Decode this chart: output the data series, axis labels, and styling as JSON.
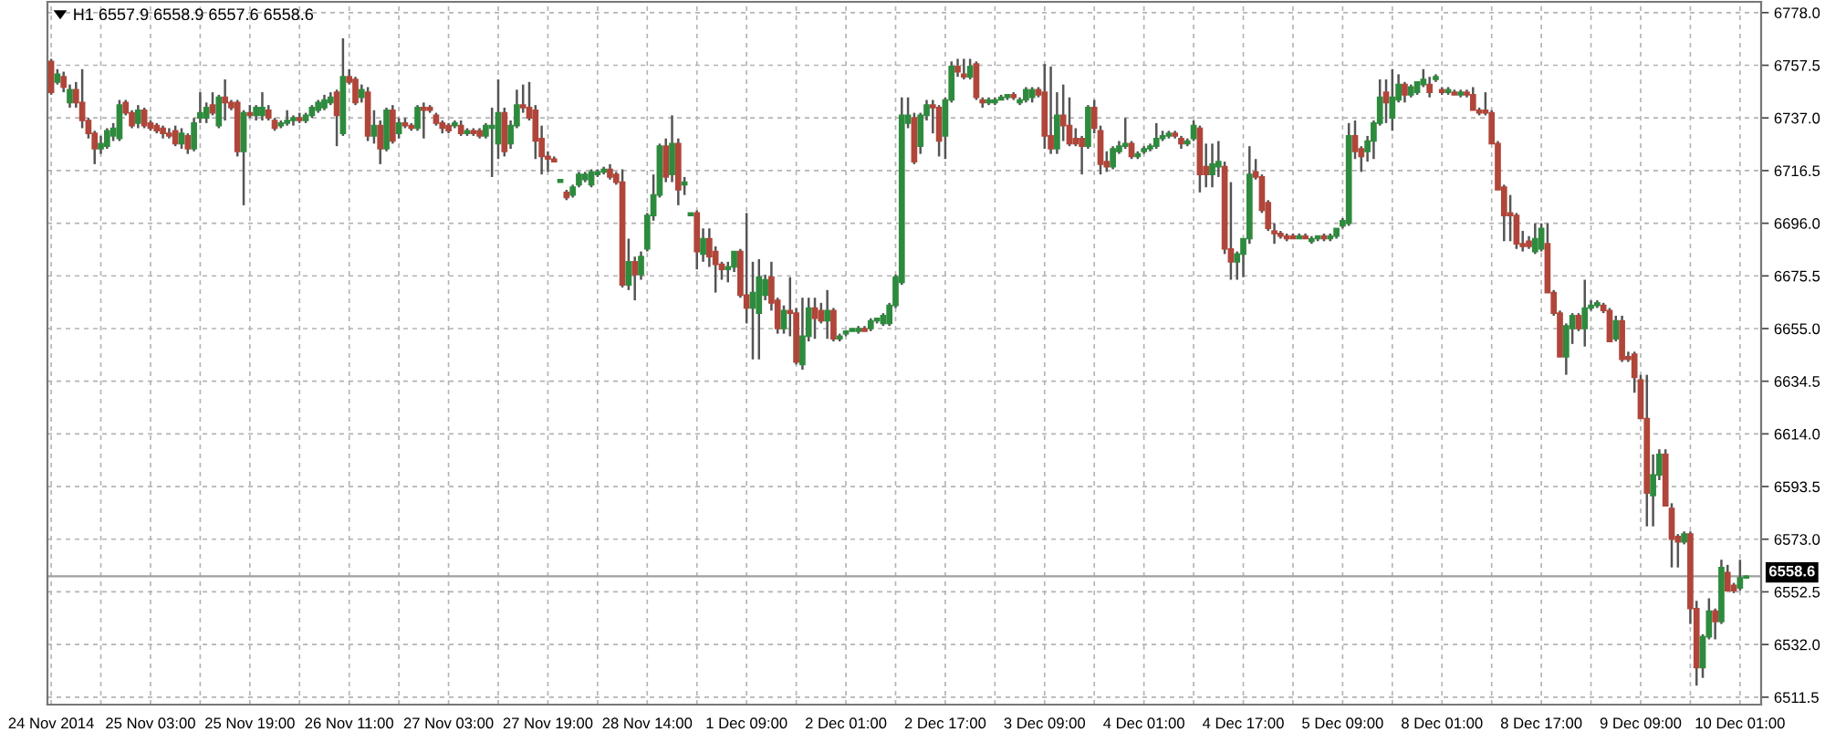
{
  "chart_data": {
    "type": "candlestick",
    "title": "H1 6557.9 6558.9 6557.6 6558.6",
    "categories": [
      "24 Nov 2014",
      null,
      null,
      null,
      null,
      null,
      null,
      null,
      null,
      null,
      null,
      null,
      null,
      null,
      null,
      null,
      "25 Nov 03:00",
      null,
      null,
      null,
      null,
      null,
      null,
      null,
      null,
      null,
      null,
      null,
      null,
      null,
      null,
      null,
      "25 Nov 19:00",
      null,
      null,
      null,
      null,
      null,
      null,
      null,
      null,
      null,
      null,
      null,
      null,
      null,
      null,
      null,
      "26 Nov 11:00",
      null,
      null,
      null,
      null,
      null,
      null,
      null,
      null,
      null,
      null,
      null,
      null,
      null,
      null,
      null,
      "27 Nov 03:00",
      null,
      null,
      null,
      null,
      null,
      null,
      null,
      null,
      null,
      null,
      null,
      null,
      null,
      null,
      null,
      "27 Nov 19:00",
      null,
      null,
      null,
      null,
      null,
      null,
      null,
      null,
      null,
      null,
      null,
      null,
      null,
      null,
      null,
      "28 Nov 14:00",
      null,
      null,
      null,
      null,
      null,
      null,
      null,
      null,
      null,
      null,
      null,
      null,
      null,
      null,
      null,
      "1 Dec 09:00",
      null,
      null,
      null,
      null,
      null,
      null,
      null,
      null,
      null,
      null,
      null,
      null,
      null,
      null,
      null,
      "2 Dec 01:00",
      null,
      null,
      null,
      null,
      null,
      null,
      null,
      null,
      null,
      null,
      null,
      null,
      null,
      null,
      null,
      "2 Dec 17:00",
      null,
      null,
      null,
      null,
      null,
      null,
      null,
      null,
      null,
      null,
      null,
      null,
      null,
      null,
      null,
      "3 Dec 09:00",
      null,
      null,
      null,
      null,
      null,
      null,
      null,
      null,
      null,
      null,
      null,
      null,
      null,
      null,
      null,
      "4 Dec 01:00",
      null,
      null,
      null,
      null,
      null,
      null,
      null,
      null,
      null,
      null,
      null,
      null,
      null,
      null,
      null,
      "4 Dec 17:00",
      null,
      null,
      null,
      null,
      null,
      null,
      null,
      null,
      null,
      null,
      null,
      null,
      null,
      null,
      null,
      "5 Dec 09:00",
      null,
      null,
      null,
      null,
      null,
      null,
      null,
      null,
      null,
      null,
      null,
      null,
      null,
      null,
      null,
      "8 Dec 01:00",
      null,
      null,
      null,
      null,
      null,
      null,
      null,
      null,
      null,
      null,
      null,
      null,
      null,
      null,
      null,
      "8 Dec 17:00",
      null,
      null,
      null,
      null,
      null,
      null,
      null,
      null,
      null,
      null,
      null,
      null,
      null,
      null,
      null,
      "9 Dec 09:00",
      null,
      null,
      null,
      null,
      null,
      null,
      null,
      null,
      null,
      null,
      null,
      null,
      null,
      null,
      null,
      "10 Dec 01:00",
      null
    ],
    "ohlc": [
      [
        6759,
        6760,
        6746,
        6747
      ],
      [
        6751,
        6756,
        6750,
        6754
      ],
      [
        6753,
        6755,
        6747,
        6749
      ],
      [
        6743,
        6750,
        6741,
        6748
      ],
      [
        6748,
        6751,
        6741,
        6743
      ],
      [
        6743,
        6756,
        6733,
        6736
      ],
      [
        6736,
        6737,
        6729,
        6731
      ],
      [
        6731,
        6732,
        6719,
        6725
      ],
      [
        6725,
        6730,
        6723,
        6727
      ],
      [
        6726,
        6733,
        6725,
        6732
      ],
      [
        6730,
        6735,
        6728,
        6733
      ],
      [
        6729,
        6744,
        6728,
        6742
      ],
      [
        6743,
        6744,
        6738,
        6739
      ],
      [
        6739,
        6740,
        6733,
        6734
      ],
      [
        6735,
        6742,
        6733,
        6740
      ],
      [
        6740,
        6741,
        6733,
        6734
      ],
      [
        6735,
        6736,
        6732,
        6733
      ],
      [
        6734,
        6735,
        6731,
        6732
      ],
      [
        6733,
        6734,
        6729,
        6731
      ],
      [
        6731,
        6733,
        6729,
        6730
      ],
      [
        6732,
        6734,
        6726,
        6727
      ],
      [
        6727,
        6733,
        6725,
        6731
      ],
      [
        6730,
        6731,
        6723,
        6725
      ],
      [
        6725,
        6737,
        6724,
        6735
      ],
      [
        6737,
        6747,
        6735,
        6739
      ],
      [
        6737,
        6743,
        6735,
        6741
      ],
      [
        6742,
        6747,
        6738,
        6739
      ],
      [
        6734,
        6746,
        6733,
        6745
      ],
      [
        6745,
        6752,
        6736,
        6743
      ],
      [
        6743,
        6744,
        6740,
        6741
      ],
      [
        6743,
        6744,
        6722,
        6724
      ],
      [
        6724,
        6740,
        6703,
        6739
      ],
      [
        6739,
        6742,
        6737,
        6738
      ],
      [
        6738,
        6742,
        6736,
        6741
      ],
      [
        6738,
        6747,
        6736,
        6741
      ],
      [
        6740,
        6742,
        6736,
        6737
      ],
      [
        6736,
        6737,
        6732,
        6733
      ],
      [
        6734,
        6736,
        6733,
        6735
      ],
      [
        6735,
        6740,
        6734,
        6736
      ],
      [
        6736,
        6738,
        6734,
        6737
      ],
      [
        6737,
        6739,
        6735,
        6736
      ],
      [
        6736,
        6739,
        6735,
        6738
      ],
      [
        6738,
        6742,
        6737,
        6741
      ],
      [
        6740,
        6744,
        6739,
        6743
      ],
      [
        6741,
        6746,
        6740,
        6744
      ],
      [
        6743,
        6747,
        6742,
        6745
      ],
      [
        6747,
        6748,
        6726,
        6738
      ],
      [
        6731,
        6768,
        6730,
        6753
      ],
      [
        6753,
        6756,
        6750,
        6751
      ],
      [
        6752,
        6753,
        6742,
        6743
      ],
      [
        6745,
        6750,
        6743,
        6748
      ],
      [
        6747,
        6749,
        6728,
        6730
      ],
      [
        6730,
        6740,
        6727,
        6734
      ],
      [
        6734,
        6736,
        6719,
        6725
      ],
      [
        6725,
        6741,
        6724,
        6740
      ],
      [
        6740,
        6742,
        6727,
        6728
      ],
      [
        6731,
        6737,
        6729,
        6735
      ],
      [
        6735,
        6737,
        6733,
        6734
      ],
      [
        6734,
        6735,
        6732,
        6733
      ],
      [
        6733,
        6742,
        6732,
        6741
      ],
      [
        6741,
        6743,
        6729,
        6740
      ],
      [
        6741,
        6742,
        6739,
        6740
      ],
      [
        6738,
        6739,
        6734,
        6735
      ],
      [
        6735,
        6736,
        6731,
        6733
      ],
      [
        6734,
        6735,
        6731,
        6732
      ],
      [
        6734,
        6736,
        6733,
        6735
      ],
      [
        6734,
        6736,
        6730,
        6731
      ],
      [
        6731,
        6733,
        6730,
        6732
      ],
      [
        6732,
        6733,
        6730,
        6731
      ],
      [
        6732,
        6733,
        6729,
        6730
      ],
      [
        6730,
        6735,
        6729,
        6734
      ],
      [
        6733,
        6741,
        6714,
        6734
      ],
      [
        6727,
        6752,
        6721,
        6739
      ],
      [
        6739,
        6741,
        6722,
        6724
      ],
      [
        6727,
        6736,
        6725,
        6734
      ],
      [
        6734,
        6748,
        6733,
        6742
      ],
      [
        6742,
        6750,
        6739,
        6741
      ],
      [
        6741,
        6751,
        6736,
        6737
      ],
      [
        6740,
        6742,
        6721,
        6728
      ],
      [
        6729,
        6734,
        6715,
        6722
      ],
      [
        6722,
        6724,
        6716,
        6721
      ],
      [
        6721,
        6722,
        6720,
        6720
      ],
      [
        6712,
        6713,
        6712,
        6713
      ],
      [
        6708,
        6709,
        6705,
        6706
      ],
      [
        6707,
        6711,
        6706,
        6710
      ],
      [
        6711,
        6716,
        6710,
        6715
      ],
      [
        6713,
        6716,
        6712,
        6715
      ],
      [
        6711,
        6717,
        6710,
        6716
      ],
      [
        6715,
        6717,
        6714,
        6716
      ],
      [
        6716,
        6718,
        6715,
        6717
      ],
      [
        6717,
        6719,
        6713,
        6714
      ],
      [
        6715,
        6716,
        6711,
        6712
      ],
      [
        6712,
        6717,
        6671,
        6672
      ],
      [
        6672,
        6690,
        6670,
        6681
      ],
      [
        6681,
        6683,
        6666,
        6676
      ],
      [
        6676,
        6685,
        6674,
        6683
      ],
      [
        6686,
        6700,
        6685,
        6699
      ],
      [
        6699,
        6715,
        6697,
        6707
      ],
      [
        6707,
        6727,
        6706,
        6726
      ],
      [
        6726,
        6729,
        6712,
        6714
      ],
      [
        6715,
        6738,
        6712,
        6727
      ],
      [
        6727,
        6729,
        6703,
        6709
      ],
      [
        6711,
        6714,
        6707,
        6712
      ],
      [
        6699,
        6700,
        6699,
        6700
      ],
      [
        6700,
        6701,
        6678,
        6685
      ],
      [
        6684,
        6694,
        6681,
        6690
      ],
      [
        6690,
        6694,
        6679,
        6683
      ],
      [
        6685,
        6687,
        6669,
        6680
      ],
      [
        6680,
        6681,
        6674,
        6678
      ],
      [
        6678,
        6681,
        6673,
        6679
      ],
      [
        6679,
        6685,
        6677,
        6685
      ],
      [
        6685,
        6686,
        6667,
        6668
      ],
      [
        6668,
        6700,
        6657,
        6663
      ],
      [
        6663,
        6681,
        6643,
        6669
      ],
      [
        6661,
        6682,
        6643,
        6675
      ],
      [
        6668,
        6676,
        6666,
        6674
      ],
      [
        6675,
        6681,
        6662,
        6665
      ],
      [
        6666,
        6667,
        6653,
        6655
      ],
      [
        6655,
        6664,
        6653,
        6662
      ],
      [
        6662,
        6675,
        6652,
        6661
      ],
      [
        6661,
        6663,
        6641,
        6642
      ],
      [
        6641,
        6667,
        6639,
        6652
      ],
      [
        6652,
        6667,
        6650,
        6663
      ],
      [
        6663,
        6667,
        6651,
        6659
      ],
      [
        6662,
        6665,
        6657,
        6658
      ],
      [
        6658,
        6670,
        6651,
        6662
      ],
      [
        6662,
        6663,
        6650,
        6651
      ],
      [
        6651,
        6653,
        6650,
        6652
      ],
      [
        6653,
        6654,
        6652,
        6654
      ],
      [
        6654,
        6655,
        6654,
        6655
      ],
      [
        6654,
        6656,
        6653,
        6655
      ],
      [
        6655,
        6656,
        6654,
        6654
      ],
      [
        6655,
        6659,
        6654,
        6658
      ],
      [
        6658,
        6659,
        6657,
        6659
      ],
      [
        6657,
        6661,
        6656,
        6660
      ],
      [
        6657,
        6665,
        6656,
        6664
      ],
      [
        6664,
        6676,
        6663,
        6675
      ],
      [
        6673,
        6745,
        6672,
        6738
      ],
      [
        6735,
        6745,
        6733,
        6738
      ],
      [
        6737,
        6739,
        6719,
        6720
      ],
      [
        6726,
        6739,
        6723,
        6738
      ],
      [
        6738,
        6744,
        6736,
        6742
      ],
      [
        6742,
        6744,
        6731,
        6741
      ],
      [
        6741,
        6742,
        6722,
        6728
      ],
      [
        6730,
        6745,
        6721,
        6744
      ],
      [
        6744,
        6759,
        6743,
        6757
      ],
      [
        6757,
        6760,
        6753,
        6755
      ],
      [
        6754,
        6760,
        6752,
        6753
      ],
      [
        6753,
        6760,
        6752,
        6757
      ],
      [
        6758,
        6759,
        6744,
        6745
      ],
      [
        6744,
        6745,
        6741,
        6743
      ],
      [
        6743,
        6745,
        6742,
        6744
      ],
      [
        6743,
        6745,
        6742,
        6744
      ],
      [
        6744,
        6746,
        6744,
        6745
      ],
      [
        6745,
        6746,
        6744,
        6746
      ],
      [
        6746,
        6747,
        6744,
        6745
      ],
      [
        6743,
        6745,
        6742,
        6744
      ],
      [
        6744,
        6749,
        6743,
        6748
      ],
      [
        6745,
        6749,
        6743,
        6748
      ],
      [
        6748,
        6749,
        6745,
        6746
      ],
      [
        6747,
        6758,
        6725,
        6730
      ],
      [
        6730,
        6757,
        6723,
        6725
      ],
      [
        6725,
        6747,
        6723,
        6738
      ],
      [
        6738,
        6750,
        6728,
        6734
      ],
      [
        6734,
        6745,
        6726,
        6727
      ],
      [
        6729,
        6733,
        6726,
        6727
      ],
      [
        6729,
        6730,
        6715,
        6726
      ],
      [
        6726,
        6742,
        6725,
        6741
      ],
      [
        6741,
        6744,
        6731,
        6733
      ],
      [
        6732,
        6734,
        6715,
        6719
      ],
      [
        6720,
        6724,
        6716,
        6718
      ],
      [
        6718,
        6726,
        6717,
        6725
      ],
      [
        6724,
        6728,
        6723,
        6726
      ],
      [
        6726,
        6737,
        6725,
        6727
      ],
      [
        6727,
        6728,
        6721,
        6722
      ],
      [
        6722,
        6724,
        6721,
        6723
      ],
      [
        6724,
        6726,
        6723,
        6725
      ],
      [
        6725,
        6727,
        6724,
        6726
      ],
      [
        6726,
        6735,
        6725,
        6729
      ],
      [
        6729,
        6732,
        6728,
        6730
      ],
      [
        6730,
        6732,
        6729,
        6731
      ],
      [
        6731,
        6732,
        6729,
        6730
      ],
      [
        6729,
        6730,
        6725,
        6727
      ],
      [
        6727,
        6729,
        6726,
        6728
      ],
      [
        6729,
        6736,
        6728,
        6734
      ],
      [
        6733,
        6734,
        6708,
        6715
      ],
      [
        6718,
        6727,
        6710,
        6715
      ],
      [
        6715,
        6727,
        6710,
        6719
      ],
      [
        6718,
        6728,
        6714,
        6720
      ],
      [
        6718,
        6720,
        6684,
        6686
      ],
      [
        6686,
        6712,
        6674,
        6681
      ],
      [
        6681,
        6685,
        6674,
        6684
      ],
      [
        6684,
        6690,
        6675,
        6690
      ],
      [
        6690,
        6726,
        6688,
        6715
      ],
      [
        6716,
        6721,
        6713,
        6714
      ],
      [
        6714,
        6715,
        6700,
        6701
      ],
      [
        6704,
        6705,
        6693,
        6694
      ],
      [
        6693,
        6696,
        6688,
        6692
      ],
      [
        6692,
        6693,
        6690,
        6691
      ],
      [
        6691,
        6692,
        6689,
        6690
      ],
      [
        6691,
        6692,
        6690,
        6690
      ],
      [
        6690,
        6692,
        6690,
        6691
      ],
      [
        6691,
        6692,
        6690,
        6690
      ],
      [
        6689,
        6691,
        6688,
        6690
      ],
      [
        6690,
        6691,
        6689,
        6691
      ],
      [
        6691,
        6692,
        6689,
        6690
      ],
      [
        6690,
        6692,
        6689,
        6691
      ],
      [
        6691,
        6694,
        6690,
        6694
      ],
      [
        6695,
        6698,
        6694,
        6697
      ],
      [
        6696,
        6735,
        6695,
        6730
      ],
      [
        6730,
        6736,
        6721,
        6724
      ],
      [
        6725,
        6726,
        6716,
        6722
      ],
      [
        6724,
        6730,
        6720,
        6728
      ],
      [
        6728,
        6736,
        6721,
        6735
      ],
      [
        6735,
        6752,
        6734,
        6745
      ],
      [
        6747,
        6752,
        6735,
        6743
      ],
      [
        6737,
        6756,
        6732,
        6745
      ],
      [
        6744,
        6754,
        6743,
        6750
      ],
      [
        6750,
        6751,
        6743,
        6746
      ],
      [
        6746,
        6750,
        6745,
        6749
      ],
      [
        6747,
        6751,
        6746,
        6751
      ],
      [
        6750,
        6756,
        6749,
        6752
      ],
      [
        6750,
        6753,
        6745,
        6747
      ],
      [
        6752,
        6754,
        6751,
        6753
      ],
      [
        6748,
        6749,
        6746,
        6747
      ],
      [
        6747,
        6749,
        6746,
        6748
      ],
      [
        6747,
        6748,
        6746,
        6746
      ],
      [
        6746,
        6748,
        6745,
        6747
      ],
      [
        6747,
        6748,
        6745,
        6746
      ],
      [
        6746,
        6749,
        6740,
        6740
      ],
      [
        6740,
        6741,
        6738,
        6739
      ],
      [
        6740,
        6747,
        6738,
        6739
      ],
      [
        6739,
        6740,
        6727,
        6727
      ],
      [
        6727,
        6728,
        6709,
        6709
      ],
      [
        6710,
        6711,
        6689,
        6699
      ],
      [
        6700,
        6707,
        6689,
        6699
      ],
      [
        6699,
        6700,
        6686,
        6688
      ],
      [
        6688,
        6693,
        6685,
        6687
      ],
      [
        6689,
        6691,
        6686,
        6687
      ],
      [
        6685,
        6696,
        6684,
        6690
      ],
      [
        6686,
        6696,
        6685,
        6694
      ],
      [
        6688,
        6696,
        6669,
        6669
      ],
      [
        6669,
        6670,
        6660,
        6661
      ],
      [
        6661,
        6662,
        6644,
        6644
      ],
      [
        6644,
        6657,
        6637,
        6656
      ],
      [
        6655,
        6661,
        6649,
        6660
      ],
      [
        6660,
        6661,
        6654,
        6655
      ],
      [
        6655,
        6674,
        6648,
        6663
      ],
      [
        6663,
        6666,
        6662,
        6664
      ],
      [
        6664,
        6666,
        6663,
        6665
      ],
      [
        6664,
        6665,
        6661,
        6662
      ],
      [
        6662,
        6663,
        6650,
        6650
      ],
      [
        6651,
        6660,
        6650,
        6658
      ],
      [
        6658,
        6660,
        6642,
        6643
      ],
      [
        6644,
        6646,
        6642,
        6643
      ],
      [
        6645,
        6646,
        6630,
        6636
      ],
      [
        6635,
        6637,
        6620,
        6620
      ],
      [
        6620,
        6637,
        6578,
        6591
      ],
      [
        6590,
        6606,
        6578,
        6598
      ],
      [
        6598,
        6608,
        6596,
        6606
      ],
      [
        6606,
        6608,
        6586,
        6586
      ],
      [
        6585,
        6587,
        6562,
        6573
      ],
      [
        6574,
        6575,
        6562,
        6572
      ],
      [
        6572,
        6576,
        6571,
        6575
      ],
      [
        6575,
        6576,
        6540,
        6546
      ],
      [
        6546,
        6549,
        6516,
        6523
      ],
      [
        6523,
        6536,
        6519,
        6535
      ],
      [
        6535,
        6550,
        6534,
        6545
      ],
      [
        6545,
        6546,
        6534,
        6541
      ],
      [
        6541,
        6565,
        6540,
        6562
      ],
      [
        6560,
        6563,
        6553,
        6553
      ],
      [
        6555,
        6556,
        6552,
        6553
      ],
      [
        6554,
        6565,
        6553,
        6558
      ],
      [
        6557.9,
        6558.9,
        6557.6,
        6558.6
      ]
    ],
    "colors": [
      "#b0463a",
      "#2e8b3e",
      "#b0463a",
      "#2e8b3e",
      "#b0463a",
      "#b0463a",
      "#b0463a",
      "#b0463a",
      "#2e8b3e",
      "#2e8b3e",
      "#2e8b3e",
      "#2e8b3e",
      "#b0463a",
      "#b0463a",
      "#2e8b3e",
      "#b0463a",
      "#b0463a",
      "#b0463a",
      "#b0463a",
      "#b0463a",
      "#b0463a",
      "#2e8b3e",
      "#b0463a",
      "#2e8b3e",
      "#2e8b3e",
      "#2e8b3e",
      "#b0463a",
      "#2e8b3e",
      "#b0463a",
      "#b0463a",
      "#b0463a",
      "#2e8b3e",
      "#b0463a",
      "#2e8b3e",
      "#2e8b3e",
      "#b0463a",
      "#b0463a",
      "#2e8b3e",
      "#2e8b3e",
      "#2e8b3e",
      "#b0463a",
      "#2e8b3e",
      "#2e8b3e",
      "#2e8b3e",
      "#2e8b3e",
      "#2e8b3e",
      "#b0463a",
      "#2e8b3e",
      "#b0463a",
      "#b0463a",
      "#2e8b3e",
      "#b0463a",
      "#2e8b3e",
      "#b0463a",
      "#2e8b3e",
      "#b0463a",
      "#2e8b3e",
      "#b0463a",
      "#b0463a",
      "#2e8b3e",
      "#b0463a",
      "#b0463a",
      "#b0463a",
      "#b0463a",
      "#b0463a",
      "#2e8b3e",
      "#b0463a",
      "#2e8b3e",
      "#b0463a",
      "#b0463a",
      "#2e8b3e",
      "#2e8b3e",
      "#2e8b3e",
      "#b0463a",
      "#2e8b3e",
      "#2e8b3e",
      "#b0463a",
      "#b0463a",
      "#b0463a",
      "#b0463a",
      "#b0463a",
      "#b0463a",
      "#2e8b3e",
      "#b0463a",
      "#2e8b3e",
      "#2e8b3e",
      "#2e8b3e",
      "#2e8b3e",
      "#2e8b3e",
      "#2e8b3e",
      "#b0463a",
      "#b0463a",
      "#b0463a",
      "#2e8b3e",
      "#b0463a",
      "#2e8b3e",
      "#2e8b3e",
      "#2e8b3e",
      "#2e8b3e",
      "#b0463a",
      "#2e8b3e",
      "#b0463a",
      "#2e8b3e",
      "#2e8b3e",
      "#b0463a",
      "#2e8b3e",
      "#b0463a",
      "#b0463a",
      "#b0463a",
      "#2e8b3e",
      "#2e8b3e",
      "#b0463a",
      "#b0463a",
      "#2e8b3e",
      "#2e8b3e",
      "#2e8b3e",
      "#b0463a",
      "#b0463a",
      "#2e8b3e",
      "#b0463a",
      "#b0463a",
      "#2e8b3e",
      "#2e8b3e",
      "#b0463a",
      "#b0463a",
      "#2e8b3e",
      "#b0463a",
      "#2e8b3e",
      "#2e8b3e",
      "#2e8b3e",
      "#2e8b3e",
      "#b0463a",
      "#2e8b3e",
      "#2e8b3e",
      "#2e8b3e",
      "#2e8b3e",
      "#2e8b3e",
      "#2e8b3e",
      "#2e8b3e",
      "#b0463a",
      "#2e8b3e",
      "#2e8b3e",
      "#b0463a",
      "#b0463a",
      "#2e8b3e",
      "#2e8b3e",
      "#b0463a",
      "#b0463a",
      "#2e8b3e",
      "#b0463a",
      "#b0463a",
      "#2e8b3e",
      "#2e8b3e",
      "#2e8b3e",
      "#2e8b3e",
      "#b0463a",
      "#2e8b3e",
      "#2e8b3e",
      "#2e8b3e",
      "#b0463a",
      "#b0463a",
      "#b0463a",
      "#2e8b3e",
      "#b0463a",
      "#b0463a",
      "#b0463a",
      "#b0463a",
      "#2e8b3e",
      "#b0463a",
      "#b0463a",
      "#b0463a",
      "#2e8b3e",
      "#2e8b3e",
      "#2e8b3e",
      "#b0463a",
      "#2e8b3e",
      "#2e8b3e",
      "#2e8b3e",
      "#2e8b3e",
      "#2e8b3e",
      "#2e8b3e",
      "#b0463a",
      "#b0463a",
      "#2e8b3e",
      "#2e8b3e",
      "#b0463a",
      "#b0463a",
      "#2e8b3e",
      "#2e8b3e",
      "#b0463a",
      "#b0463a",
      "#2e8b3e",
      "#2e8b3e",
      "#2e8b3e",
      "#b0463a",
      "#b0463a",
      "#b0463a",
      "#b0463a",
      "#b0463a",
      "#b0463a",
      "#b0463a",
      "#2e8b3e",
      "#b0463a",
      "#2e8b3e",
      "#2e8b3e",
      "#b0463a",
      "#2e8b3e",
      "#2e8b3e",
      "#2e8b3e",
      "#2e8b3e",
      "#b0463a",
      "#b0463a",
      "#2e8b3e",
      "#2e8b3e",
      "#2e8b3e",
      "#b0463a",
      "#2e8b3e",
      "#2e8b3e",
      "#b0463a",
      "#2e8b3e",
      "#2e8b3e",
      "#2e8b3e",
      "#b0463a",
      "#2e8b3e",
      "#b0463a",
      "#2e8b3e",
      "#b0463a",
      "#2e8b3e",
      "#b0463a",
      "#b0463a",
      "#b0463a",
      "#b0463a",
      "#b0463a",
      "#b0463a",
      "#b0463a",
      "#b0463a",
      "#b0463a",
      "#b0463a",
      "#b0463a",
      "#2e8b3e",
      "#2e8b3e",
      "#b0463a",
      "#b0463a",
      "#b0463a",
      "#2e8b3e",
      "#2e8b3e",
      "#b0463a",
      "#2e8b3e",
      "#2e8b3e",
      "#2e8b3e",
      "#b0463a",
      "#b0463a",
      "#2e8b3e",
      "#b0463a",
      "#b0463a",
      "#b0463a",
      "#b0463a",
      "#b0463a",
      "#2e8b3e",
      "#2e8b3e",
      "#b0463a",
      "#b0463a",
      "#b0463a",
      "#2e8b3e",
      "#b0463a",
      "#b0463a",
      "#2e8b3e",
      "#2e8b3e",
      "#b0463a",
      "#2e8b3e",
      "#b0463a",
      "#b0463a",
      "#2e8b3e",
      "#2e8b3e"
    ],
    "ylim": [
      6508.6,
      6782.2
    ],
    "yticks": [
      {
        "value": 6778.0,
        "label": "6778.0"
      },
      6757.5,
      {
        "value": 6737.0,
        "label": "6737.0"
      },
      6716.5,
      {
        "value": 6696.0,
        "label": "6696.0"
      },
      6675.5,
      {
        "value": 6655.0,
        "label": "6655.0"
      },
      6634.5,
      {
        "value": 6614.0,
        "label": "6614.0"
      },
      6593.5,
      {
        "value": 6573.0,
        "label": "6573.0"
      },
      6552.5,
      {
        "value": 6532.0,
        "label": "6532.0"
      },
      6511.5
    ],
    "ref_lines": [
      {
        "axis": "y",
        "value": 6558.6,
        "label": "6558.6",
        "color": "#a0a0a0"
      }
    ],
    "grid": true
  }
}
